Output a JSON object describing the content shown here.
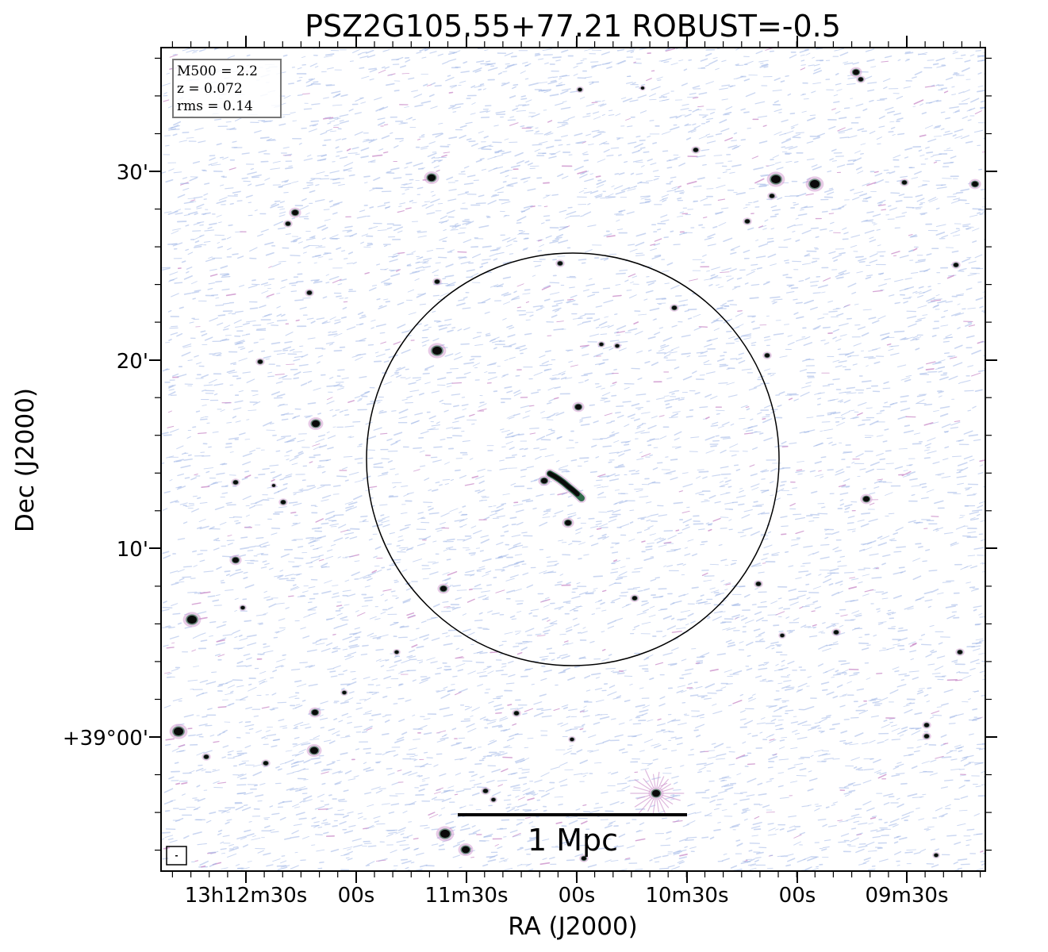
{
  "figure": {
    "title": "PSZ2G105.55+77.21 ROBUST=-0.5",
    "xlabel": "RA (J2000)",
    "ylabel": "Dec (J2000)",
    "x_ticks": [
      "13h12m30s",
      "00s",
      "11m30s",
      "00s",
      "10m30s",
      "00s",
      "09m30s"
    ],
    "y_ticks": [
      "30'",
      "20'",
      "10'",
      "+39°00'"
    ],
    "info_box": {
      "line1": "M500 = 2.2",
      "line2": "z = 0.072",
      "line3": "rms = 0.14"
    },
    "scale_bar_label": "1 Mpc",
    "colors": {
      "background": "#ffffff",
      "noise_blue": "#9fb6e6",
      "noise_pink": "#c98ac8",
      "source_core": "#0a0a0a",
      "source_halo_green": "#2f6b4a"
    }
  }
}
